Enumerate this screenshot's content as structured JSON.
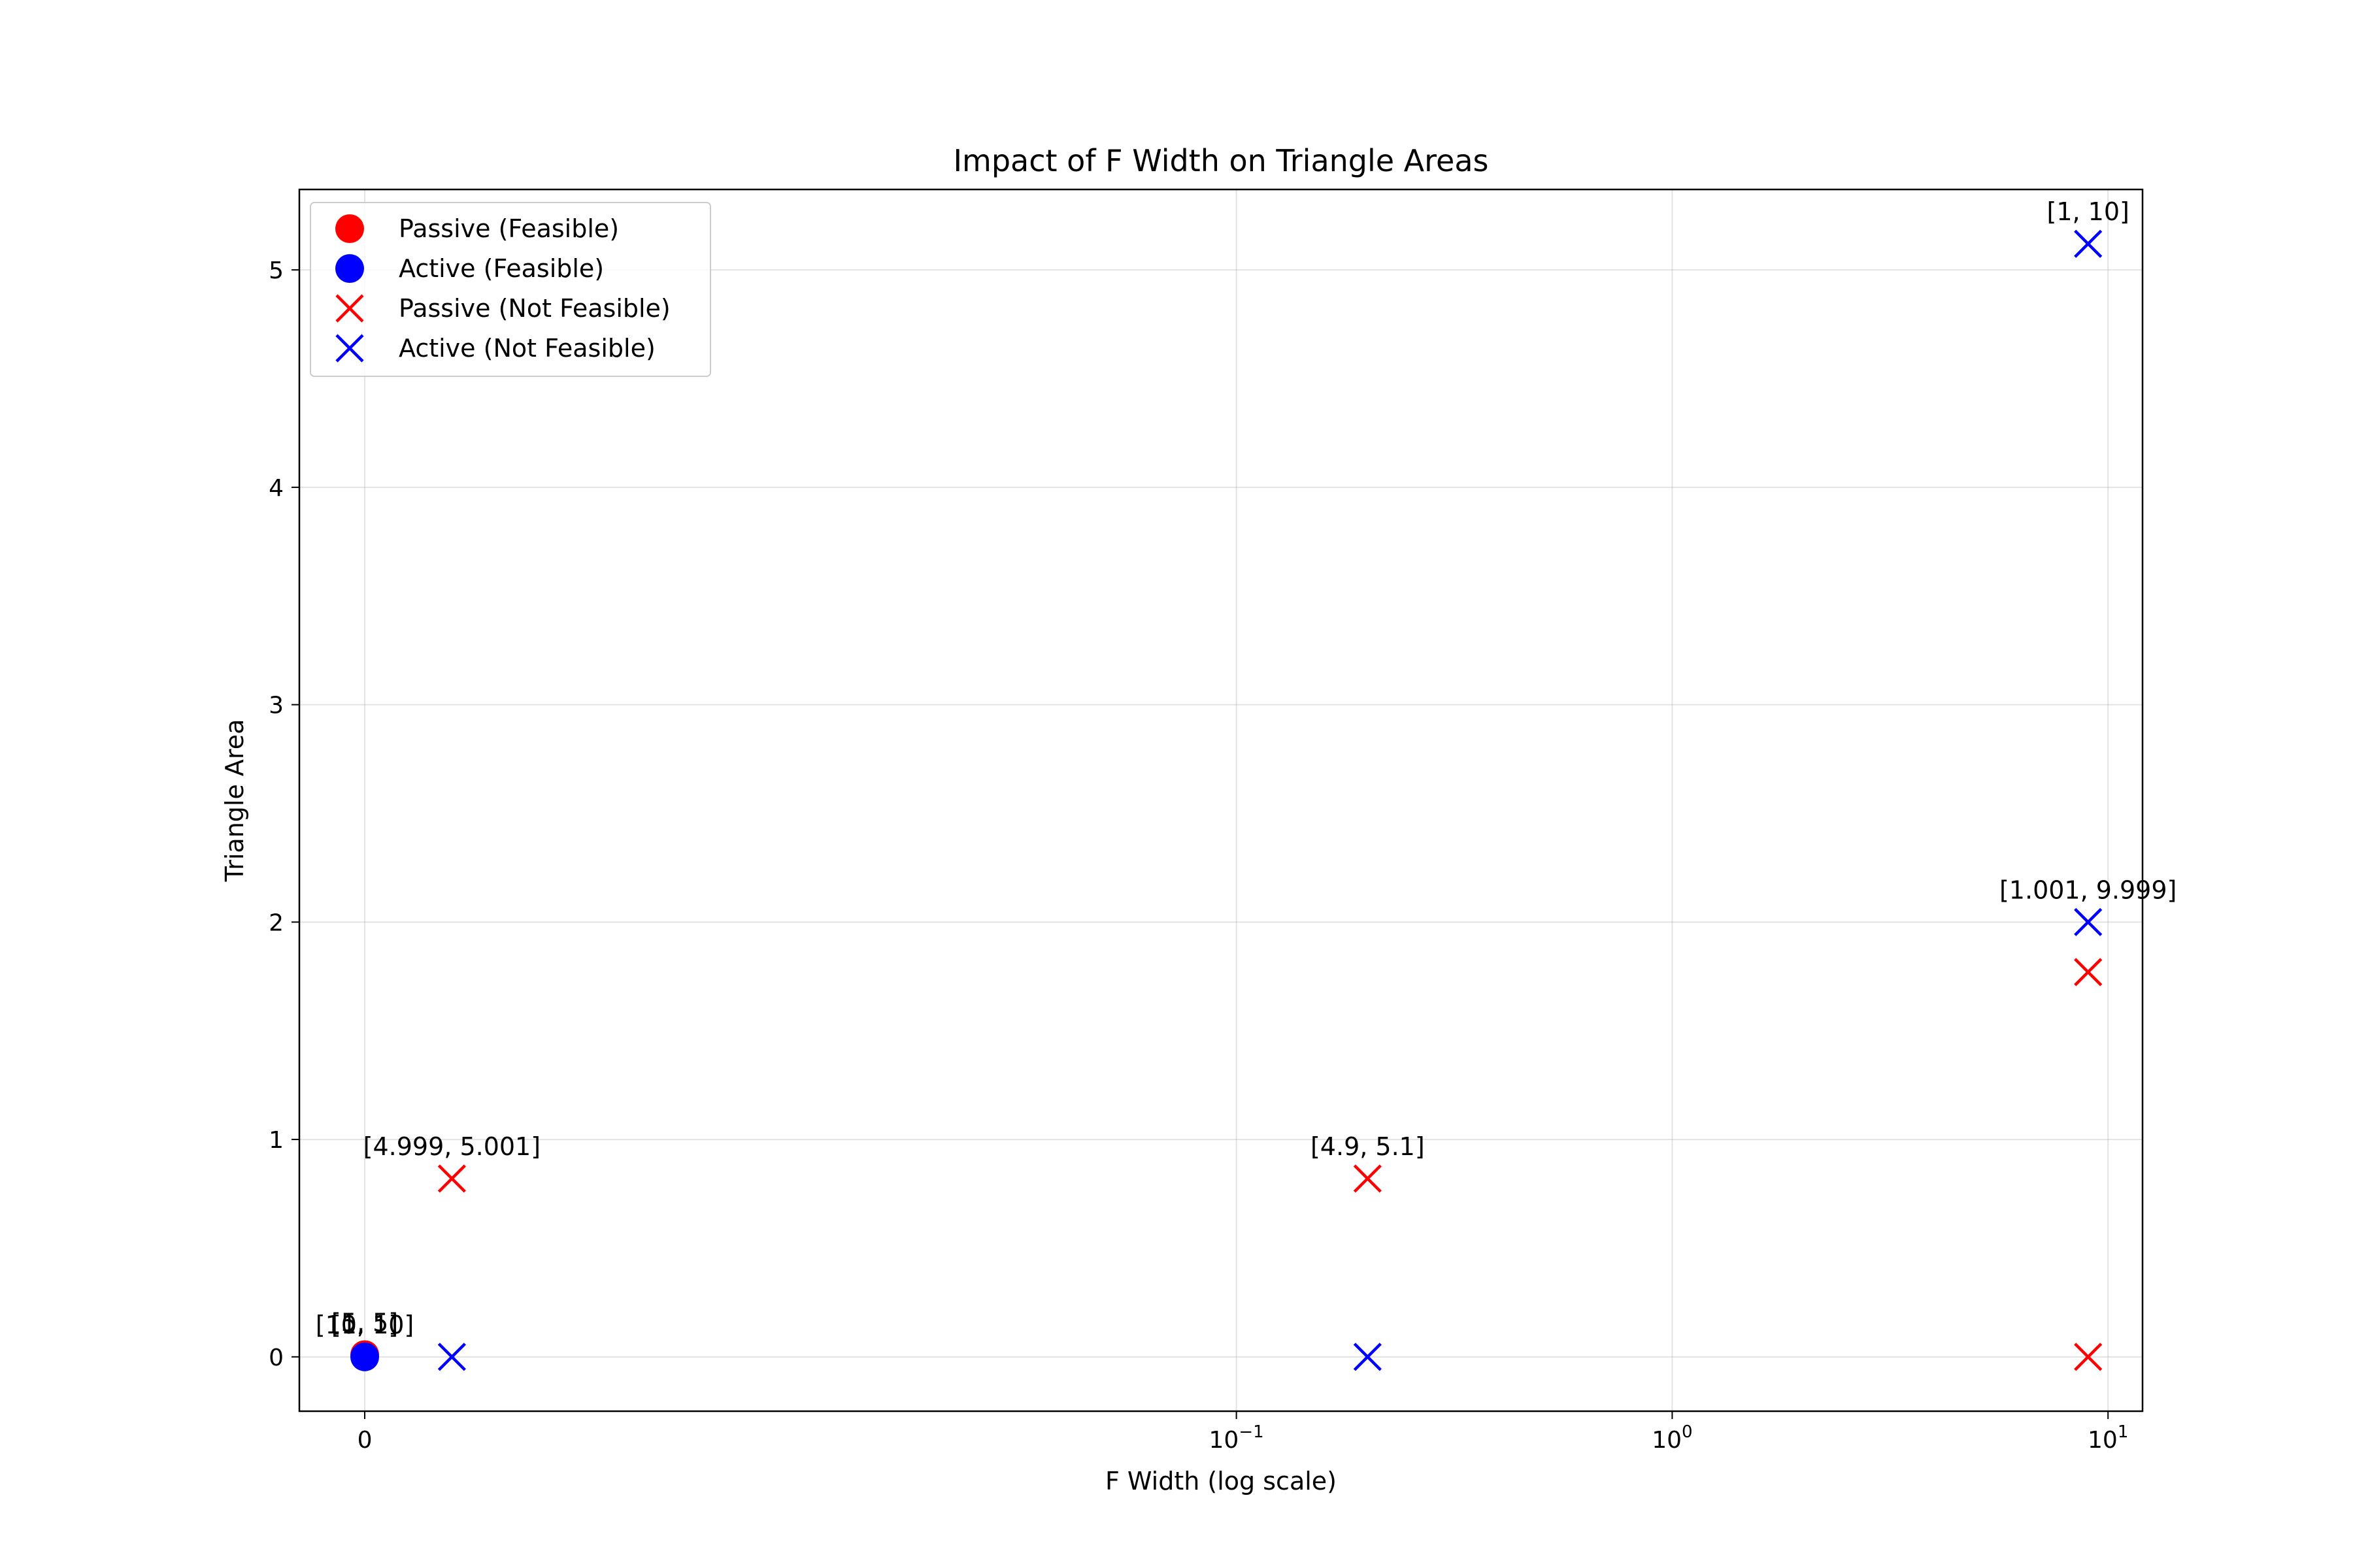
{
  "chart_data": {
    "type": "scatter",
    "title": "Impact of F Width on Triangle Areas",
    "xlabel": "F Width (log scale)",
    "ylabel": "Triangle Area",
    "xscale": "symlog",
    "xlim": [
      -0.0015,
      12
    ],
    "ylim": [
      -0.25,
      5.37
    ],
    "grid": true,
    "legend_position": "top-left",
    "x_ticks": [
      {
        "value": 0,
        "label": "0",
        "exp": ""
      },
      {
        "value": 0.1,
        "label": "10",
        "exp": "−1"
      },
      {
        "value": 1,
        "label": "10",
        "exp": "0"
      },
      {
        "value": 10,
        "label": "10",
        "exp": "1"
      }
    ],
    "y_ticks": [
      0,
      1,
      2,
      3,
      4,
      5
    ],
    "series": [
      {
        "name": "Passive (Feasible)",
        "marker": "circle",
        "color": "#ff0000",
        "points": [
          {
            "x": 0,
            "y": 0.01
          }
        ]
      },
      {
        "name": "Active (Feasible)",
        "marker": "circle",
        "color": "#0000ff",
        "points": [
          {
            "x": 0,
            "y": 0.0
          }
        ]
      },
      {
        "name": "Passive (Not Feasible)",
        "marker": "x",
        "color": "#ff0000",
        "points": [
          {
            "x": 0.002,
            "y": 0.82
          },
          {
            "x": 0.2,
            "y": 0.82
          },
          {
            "x": 9.0,
            "y": 1.77
          },
          {
            "x": 9.0,
            "y": 0.0
          }
        ]
      },
      {
        "name": "Active (Not Feasible)",
        "marker": "x",
        "color": "#0000ff",
        "points": [
          {
            "x": 0.002,
            "y": 0.0
          },
          {
            "x": 0.2,
            "y": 0.0
          },
          {
            "x": 9.0,
            "y": 2.0
          },
          {
            "x": 9.0,
            "y": 5.12
          }
        ]
      }
    ],
    "annotations": [
      {
        "text": "[1, 10]",
        "x": 9.0,
        "y": 5.12
      },
      {
        "text": "[1.001, 9.999]",
        "x": 9.0,
        "y": 2.0
      },
      {
        "text": "[4.999, 5.001]",
        "x": 0.002,
        "y": 0.82
      },
      {
        "text": "[4.9, 5.1]",
        "x": 0.2,
        "y": 0.82
      },
      {
        "text": "[10, 10]",
        "x": 0,
        "y": 0.0
      },
      {
        "text": "[1, 1]",
        "x": 0,
        "y": 0.0
      },
      {
        "text": "[5, 5]",
        "x": 0,
        "y": 0.01
      }
    ]
  }
}
